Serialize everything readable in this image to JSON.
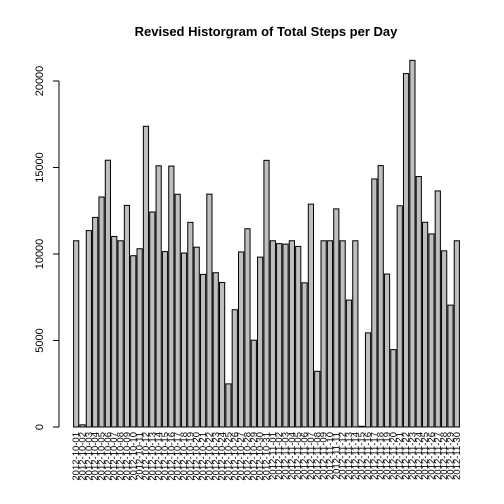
{
  "chart_data": {
    "type": "bar",
    "title": "Revised Historgram of Total Steps per Day",
    "xlabel": "",
    "ylabel": "",
    "ylim": [
      0,
      21500
    ],
    "yticks": [
      0,
      5000,
      10000,
      15000,
      20000
    ],
    "categories": [
      "2012-10-01",
      "2012-10-02",
      "2012-10-03",
      "2012-10-04",
      "2012-10-05",
      "2012-10-06",
      "2012-10-07",
      "2012-10-08",
      "2012-10-09",
      "2012-10-10",
      "2012-10-11",
      "2012-10-12",
      "2012-10-13",
      "2012-10-14",
      "2012-10-15",
      "2012-10-16",
      "2012-10-17",
      "2012-10-18",
      "2012-10-19",
      "2012-10-20",
      "2012-10-21",
      "2012-10-22",
      "2012-10-23",
      "2012-10-24",
      "2012-10-25",
      "2012-10-26",
      "2012-10-27",
      "2012-10-28",
      "2012-10-29",
      "2012-10-30",
      "2012-10-31",
      "2012-11-01",
      "2012-11-02",
      "2012-11-03",
      "2012-11-04",
      "2012-11-05",
      "2012-11-06",
      "2012-11-07",
      "2012-11-08",
      "2012-11-09",
      "2012-11-10",
      "2012-11-11",
      "2012-11-12",
      "2012-11-13",
      "2012-11-14",
      "2012-11-15",
      "2012-11-16",
      "2012-11-17",
      "2012-11-18",
      "2012-11-19",
      "2012-11-20",
      "2012-11-21",
      "2012-11-22",
      "2012-11-23",
      "2012-11-24",
      "2012-11-25",
      "2012-11-26",
      "2012-11-27",
      "2012-11-28",
      "2012-11-29",
      "2012-11-30"
    ],
    "values": [
      10766,
      126,
      11352,
      12116,
      13294,
      15420,
      11015,
      10766,
      12811,
      9900,
      10304,
      17382,
      12426,
      15098,
      10139,
      15084,
      13452,
      10056,
      11829,
      10395,
      8821,
      13460,
      8918,
      8355,
      2492,
      6778,
      10119,
      11458,
      5018,
      9819,
      15414,
      10766,
      10600,
      10571,
      10766,
      10439,
      8334,
      12883,
      3219,
      10766,
      10766,
      12608,
      10765,
      7336,
      10766,
      41,
      5441,
      14339,
      15110,
      8841,
      4472,
      12787,
      20427,
      21194,
      14478,
      11834,
      11162,
      13646,
      10183,
      7047,
      10766
    ]
  }
}
